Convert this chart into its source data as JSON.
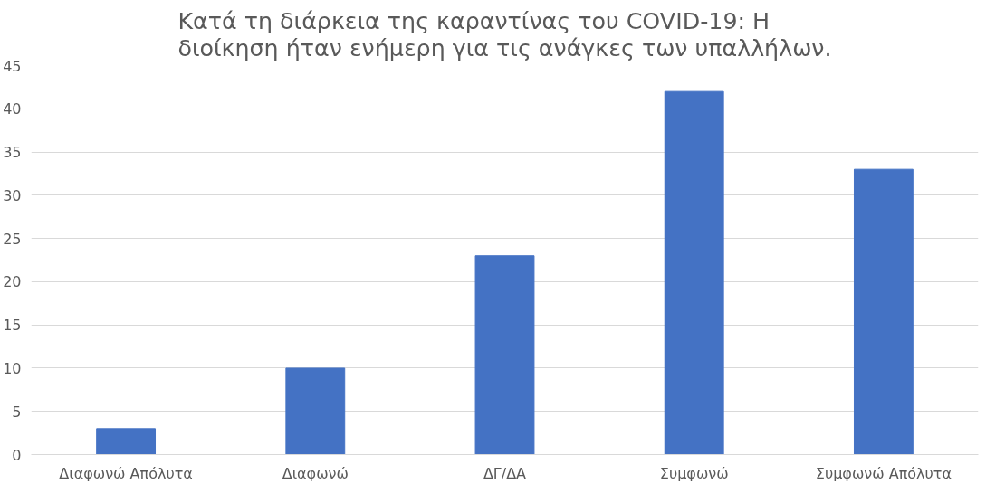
{
  "chart_data": {
    "type": "bar",
    "title": "Κατά τη διάρκεια της καραντίνας του COVID-19: Η διοίκηση ήταν ενήμερη για τις ανάγκες των υπαλλήλων.",
    "categories": [
      "Διαφωνώ Απόλυτα",
      "Διαφωνώ",
      "ΔΓ/ΔΑ",
      "Συμφωνώ",
      "Συμφωνώ Απόλυτα"
    ],
    "values": [
      3,
      10,
      23,
      42,
      33
    ],
    "color": "#4472c4",
    "ylim": [
      0,
      45
    ],
    "yticks": [
      0,
      5,
      10,
      15,
      20,
      25,
      30,
      35,
      40,
      45
    ],
    "grid": "y"
  }
}
